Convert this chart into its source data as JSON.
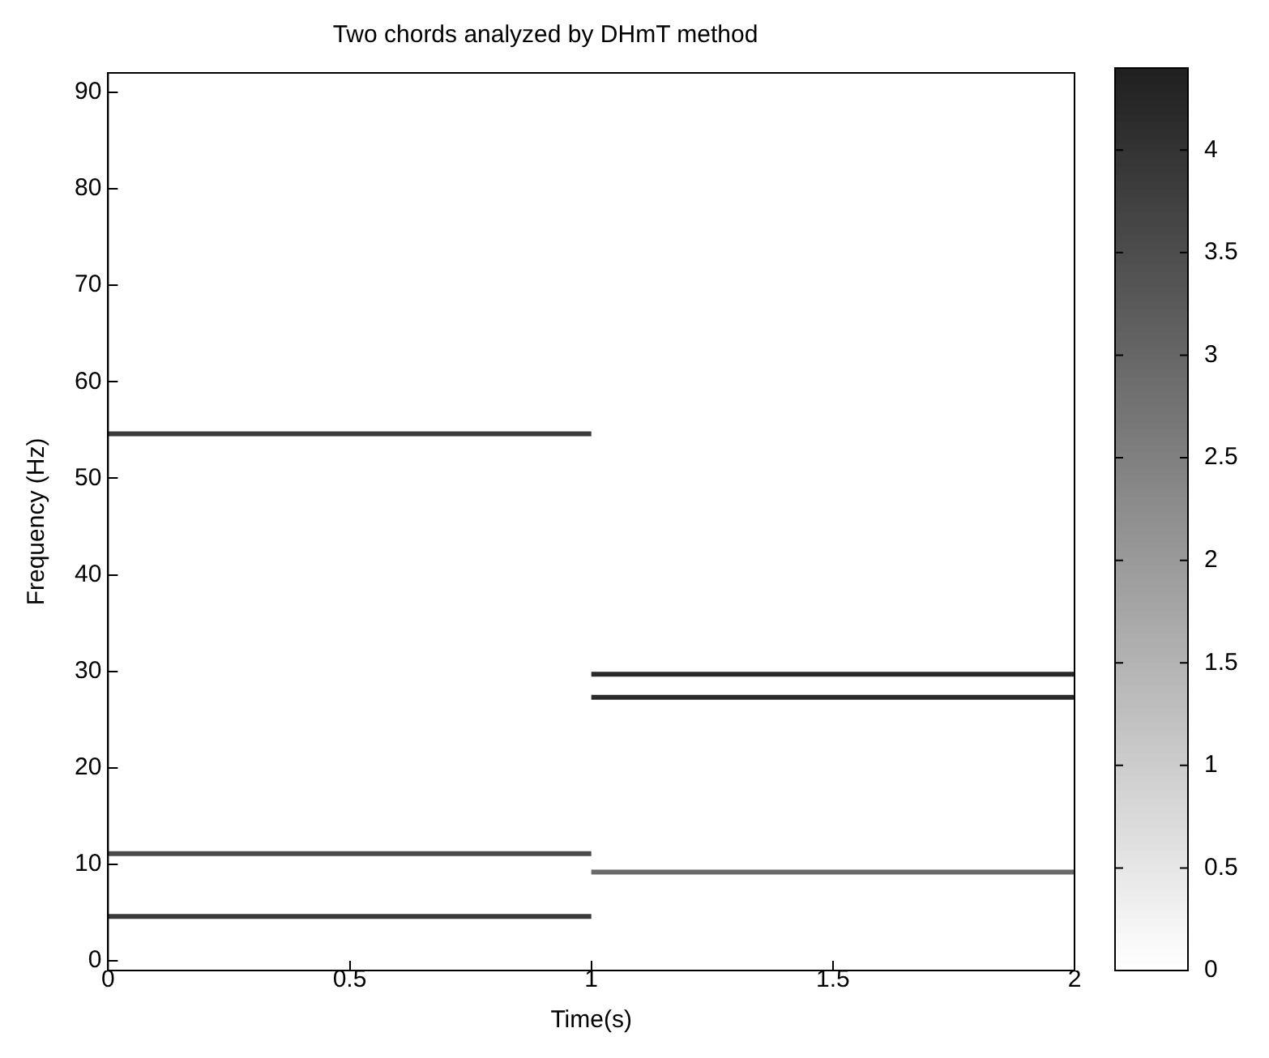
{
  "chart_data": {
    "type": "line",
    "title": "Two chords analyzed by DHmT method",
    "xlabel": "Time(s)",
    "ylabel": "Frequency (Hz)",
    "xlim": [
      0,
      2
    ],
    "xticks": [
      0,
      0.5,
      1,
      1.5,
      2
    ],
    "ylim": [
      -1,
      92
    ],
    "yticks": [
      0,
      10,
      20,
      30,
      40,
      50,
      60,
      70,
      80,
      90
    ],
    "clim": [
      0,
      4.4
    ],
    "cticks": [
      0,
      0.5,
      1,
      1.5,
      2,
      2.5,
      3,
      3.5,
      4
    ],
    "series": [
      {
        "x": [
          0,
          1
        ],
        "values": [
          54.6,
          54.6
        ],
        "color": "#3a3a3a"
      },
      {
        "x": [
          0,
          1
        ],
        "values": [
          11.1,
          11.1
        ],
        "color": "#4a4a4a"
      },
      {
        "x": [
          0,
          1
        ],
        "values": [
          4.6,
          4.6
        ],
        "color": "#3a3a3a"
      },
      {
        "x": [
          1,
          2
        ],
        "values": [
          29.7,
          29.7
        ],
        "color": "#2a2a2a"
      },
      {
        "x": [
          1,
          2
        ],
        "values": [
          27.3,
          27.3
        ],
        "color": "#2a2a2a"
      },
      {
        "x": [
          1,
          2
        ],
        "values": [
          9.2,
          9.2
        ],
        "color": "#6a6a6a"
      }
    ],
    "grid": false,
    "legend": false
  }
}
